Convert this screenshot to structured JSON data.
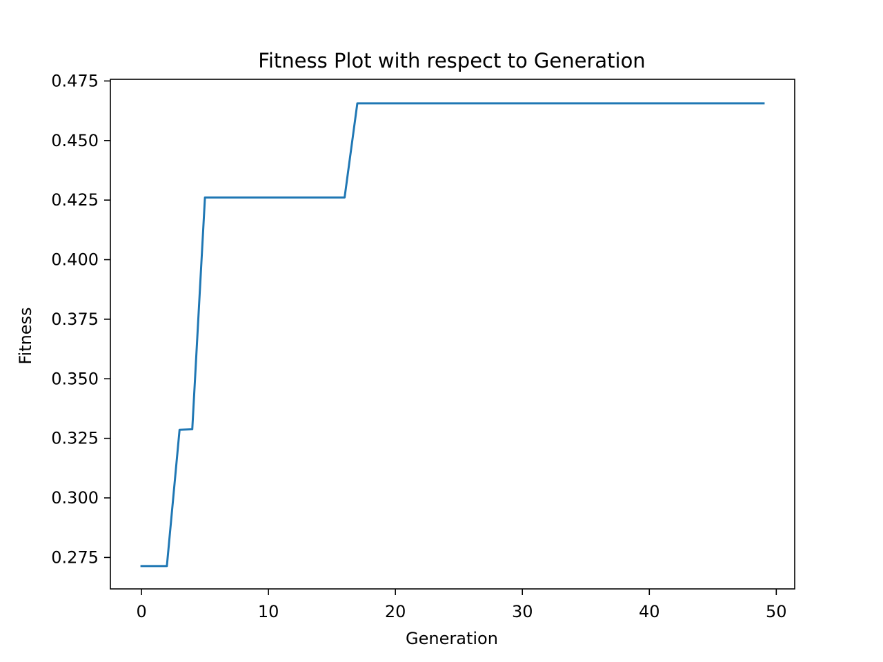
{
  "chart_data": {
    "type": "line",
    "title": "Fitness Plot with respect to Generation",
    "xlabel": "Generation",
    "ylabel": "Fitness",
    "xlim": [
      -2.45,
      51.45
    ],
    "ylim": [
      0.2618,
      0.4757
    ],
    "xticks": [
      0,
      10,
      20,
      30,
      40,
      50
    ],
    "yticks": [
      0.275,
      0.3,
      0.325,
      0.35,
      0.375,
      0.4,
      0.425,
      0.45,
      0.475
    ],
    "xtick_labels": [
      "0",
      "10",
      "20",
      "30",
      "40",
      "50"
    ],
    "ytick_labels": [
      "0.275",
      "0.300",
      "0.325",
      "0.350",
      "0.375",
      "0.400",
      "0.425",
      "0.450",
      "0.475"
    ],
    "grid": false,
    "legend": false,
    "series": [
      {
        "color": "#1f77b4",
        "x": [
          0,
          1,
          2,
          3,
          4,
          5,
          6,
          7,
          8,
          9,
          10,
          11,
          12,
          13,
          14,
          15,
          16,
          17,
          18,
          19,
          20,
          21,
          22,
          23,
          24,
          25,
          26,
          27,
          28,
          29,
          30,
          31,
          32,
          33,
          34,
          35,
          36,
          37,
          38,
          39,
          40,
          41,
          42,
          43,
          44,
          45,
          46,
          47,
          48,
          49
        ],
        "y": [
          0.2714,
          0.2714,
          0.2714,
          0.3286,
          0.3288,
          0.4261,
          0.4261,
          0.4261,
          0.4261,
          0.4261,
          0.4261,
          0.4261,
          0.4261,
          0.4261,
          0.4261,
          0.4261,
          0.4261,
          0.4656,
          0.4656,
          0.4656,
          0.4656,
          0.4656,
          0.4656,
          0.4656,
          0.4656,
          0.4656,
          0.4656,
          0.4656,
          0.4656,
          0.4656,
          0.4656,
          0.4656,
          0.4656,
          0.4656,
          0.4656,
          0.4656,
          0.4656,
          0.4656,
          0.4656,
          0.4656,
          0.4656,
          0.4656,
          0.4656,
          0.4656,
          0.4656,
          0.4656,
          0.4656,
          0.4656,
          0.4656,
          0.4656
        ]
      }
    ]
  }
}
